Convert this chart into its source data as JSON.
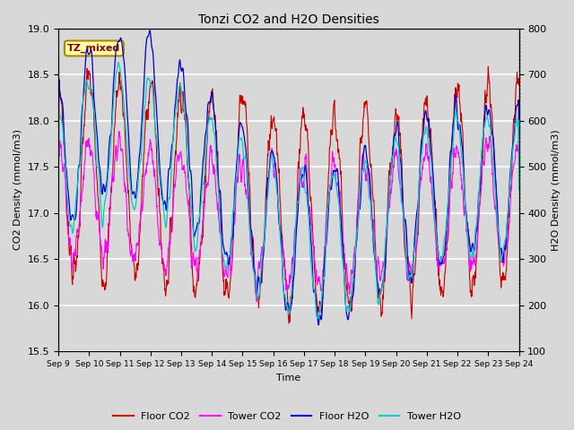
{
  "title": "Tonzi CO2 and H2O Densities",
  "xlabel": "Time",
  "ylabel_left": "CO2 Density (mmol/m3)",
  "ylabel_right": "H2O Density (mmol/m3)",
  "ylim_left": [
    15.5,
    19.0
  ],
  "ylim_right": [
    100,
    800
  ],
  "yticks_left": [
    15.5,
    16.0,
    16.5,
    17.0,
    17.5,
    18.0,
    18.5,
    19.0
  ],
  "yticks_right": [
    100,
    200,
    300,
    400,
    500,
    600,
    700,
    800
  ],
  "xtick_labels": [
    "Sep 9",
    "Sep 10",
    "Sep 11",
    "Sep 12",
    "Sep 13",
    "Sep 14",
    "Sep 15",
    "Sep 16",
    "Sep 17",
    "Sep 18",
    "Sep 19",
    "Sep 20",
    "Sep 21",
    "Sep 22",
    "Sep 23",
    "Sep 24"
  ],
  "annotation_text": "TZ_mixed",
  "colors": {
    "floor_co2": "#cc0000",
    "tower_co2": "#ff00ff",
    "floor_h2o": "#0000cc",
    "tower_h2o": "#00cccc"
  },
  "legend_labels": [
    "Floor CO2",
    "Tower CO2",
    "Floor H2O",
    "Tower H2O"
  ],
  "background_color": "#d8d8d8",
  "plot_bg_color": "#d8d8d8",
  "grid_color": "#ffffff",
  "n_days": 15,
  "pts_per_day": 96,
  "seed": 7
}
